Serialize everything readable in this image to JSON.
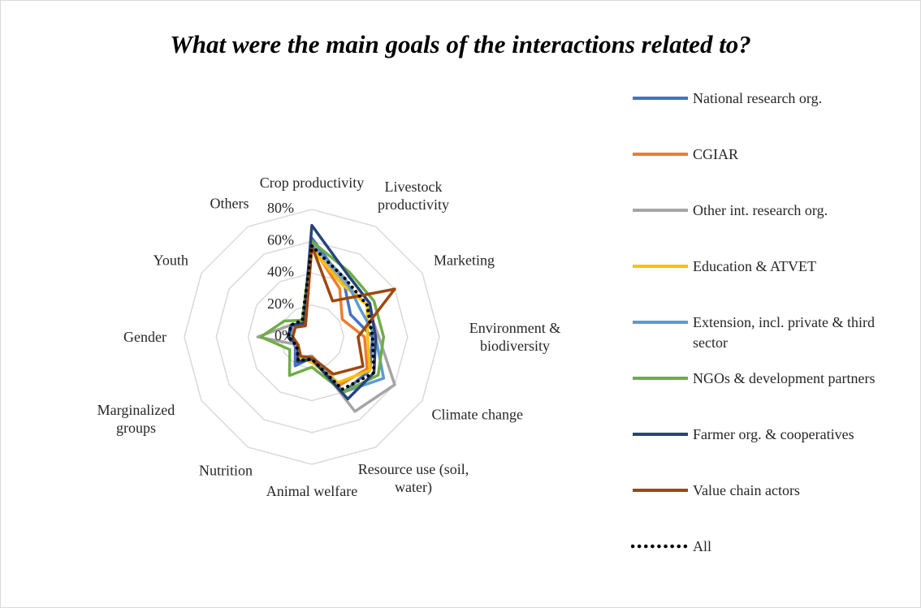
{
  "chart_data": {
    "type": "radar",
    "title": "What were the main goals of the interactions related to?",
    "categories": [
      "Crop productivity",
      "Livestock productivity",
      "Marketing",
      "Environment & biodiversity",
      "Climate change",
      "Resource use (soil, water)",
      "Animal welfare",
      "Nutrition",
      "Marginalized groups",
      "Gender",
      "Youth",
      "Others"
    ],
    "ylim": [
      0,
      80
    ],
    "yticks": [
      {
        "value": 0,
        "label": "0%"
      },
      {
        "value": 20,
        "label": "20%"
      },
      {
        "value": 40,
        "label": "40%"
      },
      {
        "value": 60,
        "label": "60%"
      },
      {
        "value": 80,
        "label": "80%"
      }
    ],
    "grid": true,
    "legend": "right",
    "series": [
      {
        "name": "National research org.",
        "color": "#4472c4",
        "values": [
          62,
          40,
          28,
          38,
          42,
          40,
          13,
          21,
          12,
          15,
          15,
          10
        ]
      },
      {
        "name": "CGIAR",
        "color": "#ed7d31",
        "values": [
          57,
          35,
          22,
          33,
          40,
          35,
          12,
          15,
          10,
          12,
          12,
          8
        ]
      },
      {
        "name": "Other int. research org.",
        "color": "#a5a5a5",
        "values": [
          55,
          40,
          40,
          42,
          60,
          54,
          12,
          15,
          10,
          34,
          15,
          10
        ]
      },
      {
        "name": "Education & ATVET",
        "color": "#ffc000",
        "values": [
          55,
          38,
          40,
          35,
          42,
          33,
          16,
          15,
          10,
          14,
          14,
          10
        ]
      },
      {
        "name": "Extension, incl. private & third sector",
        "color": "#5b9bd5",
        "values": [
          58,
          42,
          35,
          40,
          52,
          40,
          13,
          18,
          11,
          14,
          14,
          10
        ]
      },
      {
        "name": "NGOs & development partners",
        "color": "#70ad47",
        "values": [
          60,
          47,
          45,
          45,
          48,
          40,
          19,
          28,
          16,
          32,
          20,
          12
        ]
      },
      {
        "name": "Farmer org. & cooperatives",
        "color": "#264478",
        "values": [
          70,
          45,
          42,
          40,
          45,
          45,
          14,
          18,
          10,
          15,
          15,
          10
        ]
      },
      {
        "name": "Value chain actors",
        "color": "#9e480e",
        "values": [
          57,
          26,
          60,
          29,
          37,
          27,
          13,
          14,
          10,
          12,
          12,
          8
        ]
      },
      {
        "name": "All",
        "color": "#000000",
        "linestyle": "dotted",
        "values": [
          57,
          42,
          40,
          38,
          45,
          38,
          14,
          17,
          11,
          15,
          15,
          12
        ]
      }
    ]
  }
}
